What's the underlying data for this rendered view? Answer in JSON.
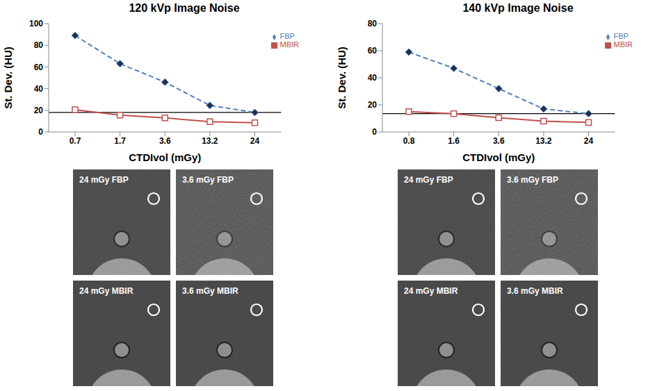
{
  "chart_data": [
    {
      "type": "line",
      "title": "120 kVp Image Noise",
      "x_label": "CTDIvol (mGy)",
      "y_label": "St. Dev. (HU)",
      "categories": [
        "0.7",
        "1.7",
        "3.6",
        "13.2",
        "24"
      ],
      "series": [
        {
          "name": "FBP",
          "color": "#4f81bd",
          "line_style": "dashed",
          "marker": "diamond",
          "values": [
            89,
            63,
            46,
            24.5,
            18
          ]
        },
        {
          "name": "MBIR",
          "color": "#c0504d",
          "line_style": "solid",
          "marker": "square",
          "values": [
            20.5,
            15.5,
            13,
            9.5,
            8.5
          ]
        }
      ],
      "reference_line": 18,
      "ylim": [
        0,
        100
      ],
      "yticks": [
        0,
        20,
        40,
        60,
        80,
        100
      ],
      "grid": false,
      "legend": "upper right"
    },
    {
      "type": "line",
      "title": "140 kVp Image Noise",
      "x_label": "CTDIvol (mGy)",
      "y_label": "St. Dev. (HU)",
      "categories": [
        "0.8",
        "1.6",
        "3.6",
        "13.2",
        "24"
      ],
      "series": [
        {
          "name": "FBP",
          "color": "#4f81bd",
          "line_style": "dashed",
          "marker": "diamond",
          "values": [
            59,
            47,
            32,
            17,
            13.5
          ]
        },
        {
          "name": "MBIR",
          "color": "#c0504d",
          "line_style": "solid",
          "marker": "square",
          "values": [
            15,
            13.5,
            10.5,
            8,
            7
          ]
        }
      ],
      "reference_line": 13.5,
      "ylim": [
        0,
        80
      ],
      "yticks": [
        0,
        20,
        40,
        60,
        80
      ],
      "grid": false,
      "legend": "upper right"
    }
  ],
  "image_panels": [
    [
      "24 mGy FBP",
      "3.6 mGy FBP",
      "24 mGy MBIR",
      "3.6 mGy MBIR"
    ],
    [
      "24 mGy FBP",
      "3.6 mGy FBP",
      "24 mGy MBIR",
      "3.6 mGy MBIR"
    ]
  ]
}
